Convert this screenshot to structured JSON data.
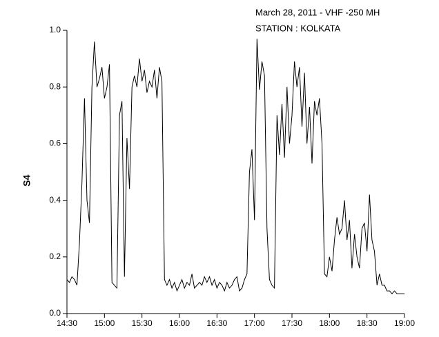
{
  "chart_data": {
    "type": "line",
    "title_lines": [
      "March 28, 2011 - VHF -250 MH",
      "STATION : KOLKATA"
    ],
    "y_label": "S4",
    "x": [
      "14:30",
      "14:32",
      "14:34",
      "14:36",
      "14:38",
      "14:40",
      "14:42",
      "14:44",
      "14:46",
      "14:48",
      "14:50",
      "14:52",
      "14:54",
      "14:56",
      "14:58",
      "15:00",
      "15:02",
      "15:04",
      "15:06",
      "15:08",
      "15:10",
      "15:12",
      "15:14",
      "15:16",
      "15:18",
      "15:20",
      "15:22",
      "15:24",
      "15:26",
      "15:28",
      "15:30",
      "15:32",
      "15:34",
      "15:36",
      "15:38",
      "15:40",
      "15:42",
      "15:44",
      "15:46",
      "15:48",
      "15:50",
      "15:52",
      "15:54",
      "15:56",
      "15:58",
      "16:00",
      "16:02",
      "16:04",
      "16:06",
      "16:08",
      "16:10",
      "16:12",
      "16:14",
      "16:16",
      "16:18",
      "16:20",
      "16:22",
      "16:24",
      "16:26",
      "16:28",
      "16:30",
      "16:32",
      "16:34",
      "16:36",
      "16:38",
      "16:40",
      "16:42",
      "16:44",
      "16:46",
      "16:48",
      "16:50",
      "16:52",
      "16:54",
      "16:56",
      "16:58",
      "17:00",
      "17:02",
      "17:04",
      "17:06",
      "17:08",
      "17:10",
      "17:12",
      "17:14",
      "17:16",
      "17:18",
      "17:20",
      "17:22",
      "17:24",
      "17:26",
      "17:28",
      "17:30",
      "17:32",
      "17:34",
      "17:36",
      "17:38",
      "17:40",
      "17:42",
      "17:44",
      "17:46",
      "17:48",
      "17:50",
      "17:52",
      "17:54",
      "17:56",
      "17:58",
      "18:00",
      "18:02",
      "18:04",
      "18:06",
      "18:08",
      "18:10",
      "18:12",
      "18:14",
      "18:16",
      "18:18",
      "18:20",
      "18:22",
      "18:24",
      "18:26",
      "18:28",
      "18:30",
      "18:32",
      "18:34",
      "18:36",
      "18:38",
      "18:40",
      "18:42",
      "18:44",
      "18:46",
      "18:48",
      "18:50",
      "18:52",
      "18:54",
      "18:56",
      "18:58",
      "19:00"
    ],
    "series": [
      {
        "color": "#000000",
        "values": [
          0.12,
          0.11,
          0.13,
          0.12,
          0.1,
          0.25,
          0.46,
          0.76,
          0.4,
          0.32,
          0.8,
          0.96,
          0.8,
          0.83,
          0.87,
          0.76,
          0.8,
          0.88,
          0.11,
          0.1,
          0.09,
          0.7,
          0.75,
          0.13,
          0.62,
          0.44,
          0.8,
          0.84,
          0.8,
          0.9,
          0.82,
          0.86,
          0.78,
          0.82,
          0.8,
          0.86,
          0.76,
          0.87,
          0.82,
          0.12,
          0.1,
          0.12,
          0.09,
          0.11,
          0.08,
          0.1,
          0.12,
          0.09,
          0.11,
          0.1,
          0.14,
          0.09,
          0.1,
          0.11,
          0.1,
          0.13,
          0.11,
          0.13,
          0.1,
          0.12,
          0.09,
          0.11,
          0.1,
          0.08,
          0.11,
          0.09,
          0.1,
          0.12,
          0.13,
          0.08,
          0.09,
          0.12,
          0.14,
          0.5,
          0.58,
          0.33,
          0.97,
          0.79,
          0.89,
          0.84,
          0.3,
          0.12,
          0.1,
          0.09,
          0.7,
          0.56,
          0.74,
          0.55,
          0.8,
          0.6,
          0.7,
          0.89,
          0.8,
          0.87,
          0.66,
          0.85,
          0.6,
          0.73,
          0.53,
          0.75,
          0.7,
          0.76,
          0.6,
          0.14,
          0.13,
          0.2,
          0.15,
          0.26,
          0.34,
          0.28,
          0.3,
          0.4,
          0.26,
          0.33,
          0.16,
          0.28,
          0.2,
          0.16,
          0.3,
          0.32,
          0.22,
          0.42,
          0.26,
          0.22,
          0.1,
          0.14,
          0.1,
          0.1,
          0.08,
          0.08,
          0.07,
          0.08,
          0.07,
          0.07,
          0.07,
          0.07
        ]
      }
    ],
    "xlim": [
      "14:30",
      "19:00"
    ],
    "xticks": [
      "14:30",
      "15:00",
      "15:30",
      "16:00",
      "16:30",
      "17:00",
      "17:30",
      "18:00",
      "18:30",
      "19:00"
    ],
    "ylim": [
      0,
      1
    ],
    "yticks": [
      {
        "value": 0,
        "label": "0.0"
      },
      0.2,
      0.4,
      0.6,
      0.8,
      {
        "value": 1,
        "label": "1.0"
      }
    ]
  }
}
